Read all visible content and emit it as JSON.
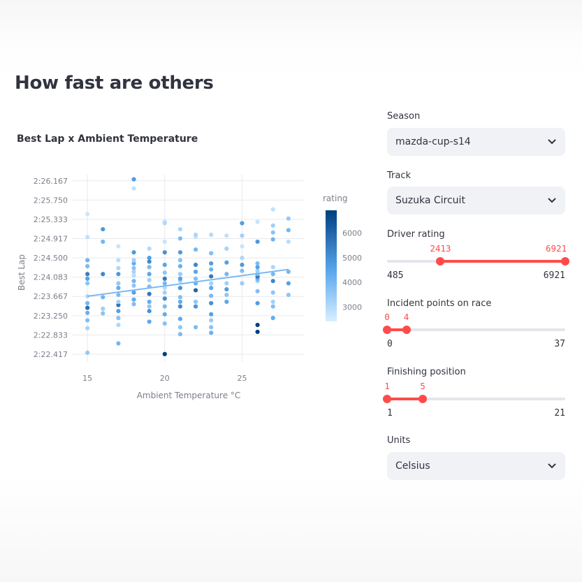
{
  "page": {
    "title": "How fast are others"
  },
  "chart": {
    "title": "Best Lap x Ambient Temperature",
    "legend_title": "rating",
    "colors": {
      "low": "#d7efff",
      "high": "#003f7f",
      "trend": "#7ab8f5"
    }
  },
  "chart_data": {
    "type": "scatter",
    "title": "Best Lap x Ambient Temperature",
    "xlabel": "Ambient Temperature °C",
    "ylabel": "Best Lap",
    "xlim": [
      14,
      29
    ],
    "ylim": [
      142.25,
      146.3
    ],
    "x_ticks": [
      15,
      20,
      25
    ],
    "y_ticks": [
      {
        "v": 142.417,
        "label": "2:22.417"
      },
      {
        "v": 142.833,
        "label": "2:22.833"
      },
      {
        "v": 143.25,
        "label": "2:23.250"
      },
      {
        "v": 143.667,
        "label": "2:23.667"
      },
      {
        "v": 144.083,
        "label": "2:24.083"
      },
      {
        "v": 144.5,
        "label": "2:24.500"
      },
      {
        "v": 144.917,
        "label": "2:24.917"
      },
      {
        "v": 145.333,
        "label": "2:25.333"
      },
      {
        "v": 145.75,
        "label": "2:25.750"
      },
      {
        "v": 146.167,
        "label": "2:26.167"
      }
    ],
    "colorbar": {
      "title": "rating",
      "range": [
        2413,
        6921
      ],
      "ticks": [
        3000,
        4000,
        5000,
        6000
      ]
    },
    "trendline": {
      "x": [
        15,
        28
      ],
      "y": [
        143.67,
        144.25
      ]
    },
    "points": [
      {
        "x": 15,
        "y": 142.45,
        "r": 3500
      },
      {
        "x": 15,
        "y": 142.98,
        "r": 3200
      },
      {
        "x": 15,
        "y": 143.15,
        "r": 3800
      },
      {
        "x": 15,
        "y": 143.31,
        "r": 4200
      },
      {
        "x": 15,
        "y": 143.42,
        "r": 5800
      },
      {
        "x": 15,
        "y": 143.52,
        "r": 4000
      },
      {
        "x": 15,
        "y": 143.67,
        "r": 3000
      },
      {
        "x": 15,
        "y": 143.95,
        "r": 3600
      },
      {
        "x": 15,
        "y": 144.05,
        "r": 4600
      },
      {
        "x": 15,
        "y": 144.15,
        "r": 5400
      },
      {
        "x": 15,
        "y": 144.32,
        "r": 3900
      },
      {
        "x": 15,
        "y": 144.45,
        "r": 4100
      },
      {
        "x": 15,
        "y": 144.95,
        "r": 2800
      },
      {
        "x": 15,
        "y": 145.45,
        "r": 2600
      },
      {
        "x": 16,
        "y": 143.3,
        "r": 3700
      },
      {
        "x": 16,
        "y": 143.4,
        "r": 3300
      },
      {
        "x": 16,
        "y": 143.65,
        "r": 4100
      },
      {
        "x": 16,
        "y": 144.15,
        "r": 5200
      },
      {
        "x": 16,
        "y": 144.85,
        "r": 4000
      },
      {
        "x": 16,
        "y": 145.12,
        "r": 4800
      },
      {
        "x": 17,
        "y": 142.65,
        "r": 4000
      },
      {
        "x": 17,
        "y": 143.05,
        "r": 3100
      },
      {
        "x": 17,
        "y": 143.2,
        "r": 3700
      },
      {
        "x": 17,
        "y": 143.35,
        "r": 4600
      },
      {
        "x": 17,
        "y": 143.48,
        "r": 5600
      },
      {
        "x": 17,
        "y": 143.55,
        "r": 3200
      },
      {
        "x": 17,
        "y": 143.7,
        "r": 3900
      },
      {
        "x": 17,
        "y": 143.85,
        "r": 4300
      },
      {
        "x": 17,
        "y": 143.95,
        "r": 3500
      },
      {
        "x": 17,
        "y": 144.15,
        "r": 4800
      },
      {
        "x": 17,
        "y": 144.28,
        "r": 3100
      },
      {
        "x": 17,
        "y": 144.45,
        "r": 2900
      },
      {
        "x": 17,
        "y": 144.75,
        "r": 2700
      },
      {
        "x": 18,
        "y": 143.5,
        "r": 3800
      },
      {
        "x": 18,
        "y": 143.6,
        "r": 4300
      },
      {
        "x": 18,
        "y": 143.75,
        "r": 4600
      },
      {
        "x": 18,
        "y": 143.9,
        "r": 3600
      },
      {
        "x": 18,
        "y": 144.0,
        "r": 4000
      },
      {
        "x": 18,
        "y": 144.12,
        "r": 2900
      },
      {
        "x": 18,
        "y": 144.2,
        "r": 3200
      },
      {
        "x": 18,
        "y": 144.28,
        "r": 3700
      },
      {
        "x": 18,
        "y": 144.38,
        "r": 4300
      },
      {
        "x": 18,
        "y": 144.45,
        "r": 3300
      },
      {
        "x": 18,
        "y": 144.62,
        "r": 4800
      },
      {
        "x": 18,
        "y": 146.2,
        "r": 4700
      },
      {
        "x": 18,
        "y": 146.0,
        "r": 2800
      },
      {
        "x": 19,
        "y": 143.12,
        "r": 4400
      },
      {
        "x": 19,
        "y": 143.35,
        "r": 5000
      },
      {
        "x": 19,
        "y": 143.45,
        "r": 3600
      },
      {
        "x": 19,
        "y": 143.55,
        "r": 4300
      },
      {
        "x": 19,
        "y": 143.72,
        "r": 5600
      },
      {
        "x": 19,
        "y": 143.88,
        "r": 3800
      },
      {
        "x": 19,
        "y": 144.02,
        "r": 3300
      },
      {
        "x": 19,
        "y": 144.15,
        "r": 4500
      },
      {
        "x": 19,
        "y": 144.3,
        "r": 3900
      },
      {
        "x": 19,
        "y": 144.42,
        "r": 5200
      },
      {
        "x": 19,
        "y": 144.5,
        "r": 4700
      },
      {
        "x": 19,
        "y": 144.7,
        "r": 3000
      },
      {
        "x": 20,
        "y": 142.42,
        "r": 6921
      },
      {
        "x": 20,
        "y": 143.08,
        "r": 3700
      },
      {
        "x": 20,
        "y": 143.28,
        "r": 4300
      },
      {
        "x": 20,
        "y": 143.45,
        "r": 3900
      },
      {
        "x": 20,
        "y": 143.62,
        "r": 5100
      },
      {
        "x": 20,
        "y": 143.75,
        "r": 3300
      },
      {
        "x": 20,
        "y": 143.85,
        "r": 2900
      },
      {
        "x": 20,
        "y": 143.95,
        "r": 4000
      },
      {
        "x": 20,
        "y": 144.05,
        "r": 5500
      },
      {
        "x": 20,
        "y": 144.18,
        "r": 3600
      },
      {
        "x": 20,
        "y": 144.35,
        "r": 4500
      },
      {
        "x": 20,
        "y": 144.62,
        "r": 5000
      },
      {
        "x": 20,
        "y": 144.85,
        "r": 2700
      },
      {
        "x": 20,
        "y": 145.28,
        "r": 2800
      },
      {
        "x": 20,
        "y": 145.25,
        "r": 3000
      },
      {
        "x": 21,
        "y": 142.85,
        "r": 3900
      },
      {
        "x": 21,
        "y": 143.0,
        "r": 3600
      },
      {
        "x": 21,
        "y": 143.18,
        "r": 4400
      },
      {
        "x": 21,
        "y": 143.45,
        "r": 5100
      },
      {
        "x": 21,
        "y": 143.55,
        "r": 4300
      },
      {
        "x": 21,
        "y": 143.65,
        "r": 3800
      },
      {
        "x": 21,
        "y": 143.85,
        "r": 4900
      },
      {
        "x": 21,
        "y": 144.0,
        "r": 3200
      },
      {
        "x": 21,
        "y": 144.05,
        "r": 4600
      },
      {
        "x": 21,
        "y": 144.15,
        "r": 3400
      },
      {
        "x": 21,
        "y": 144.32,
        "r": 4200
      },
      {
        "x": 21,
        "y": 144.45,
        "r": 3700
      },
      {
        "x": 21,
        "y": 144.62,
        "r": 4800
      },
      {
        "x": 21,
        "y": 144.92,
        "r": 3900
      },
      {
        "x": 21,
        "y": 145.12,
        "r": 3100
      },
      {
        "x": 22,
        "y": 143.0,
        "r": 3900
      },
      {
        "x": 22,
        "y": 143.45,
        "r": 4900
      },
      {
        "x": 22,
        "y": 143.55,
        "r": 3600
      },
      {
        "x": 22,
        "y": 143.8,
        "r": 6000
      },
      {
        "x": 22,
        "y": 143.95,
        "r": 4200
      },
      {
        "x": 22,
        "y": 144.05,
        "r": 3800
      },
      {
        "x": 22,
        "y": 144.2,
        "r": 4500
      },
      {
        "x": 22,
        "y": 144.35,
        "r": 5200
      },
      {
        "x": 22,
        "y": 144.68,
        "r": 4000
      },
      {
        "x": 22,
        "y": 144.95,
        "r": 2700
      },
      {
        "x": 22,
        "y": 145.0,
        "r": 3100
      },
      {
        "x": 23,
        "y": 142.88,
        "r": 4200
      },
      {
        "x": 23,
        "y": 143.0,
        "r": 3700
      },
      {
        "x": 23,
        "y": 143.15,
        "r": 3400
      },
      {
        "x": 23,
        "y": 143.28,
        "r": 4600
      },
      {
        "x": 23,
        "y": 143.52,
        "r": 5000
      },
      {
        "x": 23,
        "y": 143.68,
        "r": 3900
      },
      {
        "x": 23,
        "y": 143.85,
        "r": 4400
      },
      {
        "x": 23,
        "y": 143.95,
        "r": 3300
      },
      {
        "x": 23,
        "y": 144.1,
        "r": 5500
      },
      {
        "x": 23,
        "y": 144.25,
        "r": 4100
      },
      {
        "x": 23,
        "y": 144.38,
        "r": 4700
      },
      {
        "x": 23,
        "y": 144.6,
        "r": 3800
      },
      {
        "x": 23,
        "y": 145.0,
        "r": 3000
      },
      {
        "x": 24,
        "y": 143.55,
        "r": 4400
      },
      {
        "x": 24,
        "y": 143.7,
        "r": 3600
      },
      {
        "x": 24,
        "y": 143.82,
        "r": 4700
      },
      {
        "x": 24,
        "y": 143.95,
        "r": 3300
      },
      {
        "x": 24,
        "y": 144.15,
        "r": 4000
      },
      {
        "x": 24,
        "y": 144.4,
        "r": 4600
      },
      {
        "x": 24,
        "y": 144.7,
        "r": 3200
      },
      {
        "x": 24,
        "y": 144.98,
        "r": 2800
      },
      {
        "x": 25,
        "y": 143.95,
        "r": 3400
      },
      {
        "x": 25,
        "y": 144.22,
        "r": 3800
      },
      {
        "x": 25,
        "y": 144.35,
        "r": 4800
      },
      {
        "x": 25,
        "y": 144.5,
        "r": 3100
      },
      {
        "x": 25,
        "y": 144.75,
        "r": 2700
      },
      {
        "x": 25,
        "y": 144.98,
        "r": 3300
      },
      {
        "x": 25,
        "y": 145.25,
        "r": 4700
      },
      {
        "x": 26,
        "y": 142.9,
        "r": 6921
      },
      {
        "x": 26,
        "y": 143.05,
        "r": 6921
      },
      {
        "x": 26,
        "y": 143.52,
        "r": 4700
      },
      {
        "x": 26,
        "y": 143.78,
        "r": 3800
      },
      {
        "x": 26,
        "y": 144.0,
        "r": 3400
      },
      {
        "x": 26,
        "y": 144.05,
        "r": 4200
      },
      {
        "x": 26,
        "y": 144.1,
        "r": 5600
      },
      {
        "x": 26,
        "y": 144.15,
        "r": 4000
      },
      {
        "x": 26,
        "y": 144.22,
        "r": 3300
      },
      {
        "x": 26,
        "y": 144.3,
        "r": 4600
      },
      {
        "x": 26,
        "y": 144.38,
        "r": 3900
      },
      {
        "x": 26,
        "y": 144.85,
        "r": 4800
      },
      {
        "x": 26,
        "y": 145.28,
        "r": 2700
      },
      {
        "x": 27,
        "y": 143.2,
        "r": 4300
      },
      {
        "x": 27,
        "y": 143.45,
        "r": 3800
      },
      {
        "x": 27,
        "y": 143.55,
        "r": 3300
      },
      {
        "x": 27,
        "y": 143.75,
        "r": 3600
      },
      {
        "x": 27,
        "y": 144.0,
        "r": 5200
      },
      {
        "x": 27,
        "y": 144.15,
        "r": 4000
      },
      {
        "x": 27,
        "y": 144.3,
        "r": 3100
      },
      {
        "x": 27,
        "y": 144.9,
        "r": 4100
      },
      {
        "x": 27,
        "y": 145.05,
        "r": 3700
      },
      {
        "x": 27,
        "y": 145.2,
        "r": 3300
      },
      {
        "x": 27,
        "y": 145.55,
        "r": 2800
      },
      {
        "x": 28,
        "y": 143.7,
        "r": 3600
      },
      {
        "x": 28,
        "y": 143.95,
        "r": 4600
      },
      {
        "x": 28,
        "y": 144.2,
        "r": 4000
      },
      {
        "x": 28,
        "y": 144.85,
        "r": 2900
      },
      {
        "x": 28,
        "y": 145.1,
        "r": 4000
      },
      {
        "x": 28,
        "y": 145.35,
        "r": 3500
      }
    ]
  },
  "controls": {
    "season": {
      "label": "Season",
      "value": "mazda-cup-s14"
    },
    "track": {
      "label": "Track",
      "value": "Suzuka Circuit"
    },
    "driver_rating": {
      "label": "Driver rating",
      "min": 485,
      "max": 6921,
      "low": 2413,
      "high": 6921,
      "min_text": "485",
      "max_text": "6921",
      "low_text": "2413",
      "high_text": "6921"
    },
    "incident_points": {
      "label": "Incident points on race",
      "min": 0,
      "max": 37,
      "low": 0,
      "high": 4,
      "min_text": "0",
      "max_text": "37",
      "low_text": "0",
      "high_text": "4"
    },
    "finishing_position": {
      "label": "Finishing position",
      "min": 1,
      "max": 21,
      "low": 1,
      "high": 5,
      "min_text": "1",
      "max_text": "21",
      "low_text": "1",
      "high_text": "5"
    },
    "units": {
      "label": "Units",
      "value": "Celsius"
    },
    "accent": "#ff4b4b"
  }
}
